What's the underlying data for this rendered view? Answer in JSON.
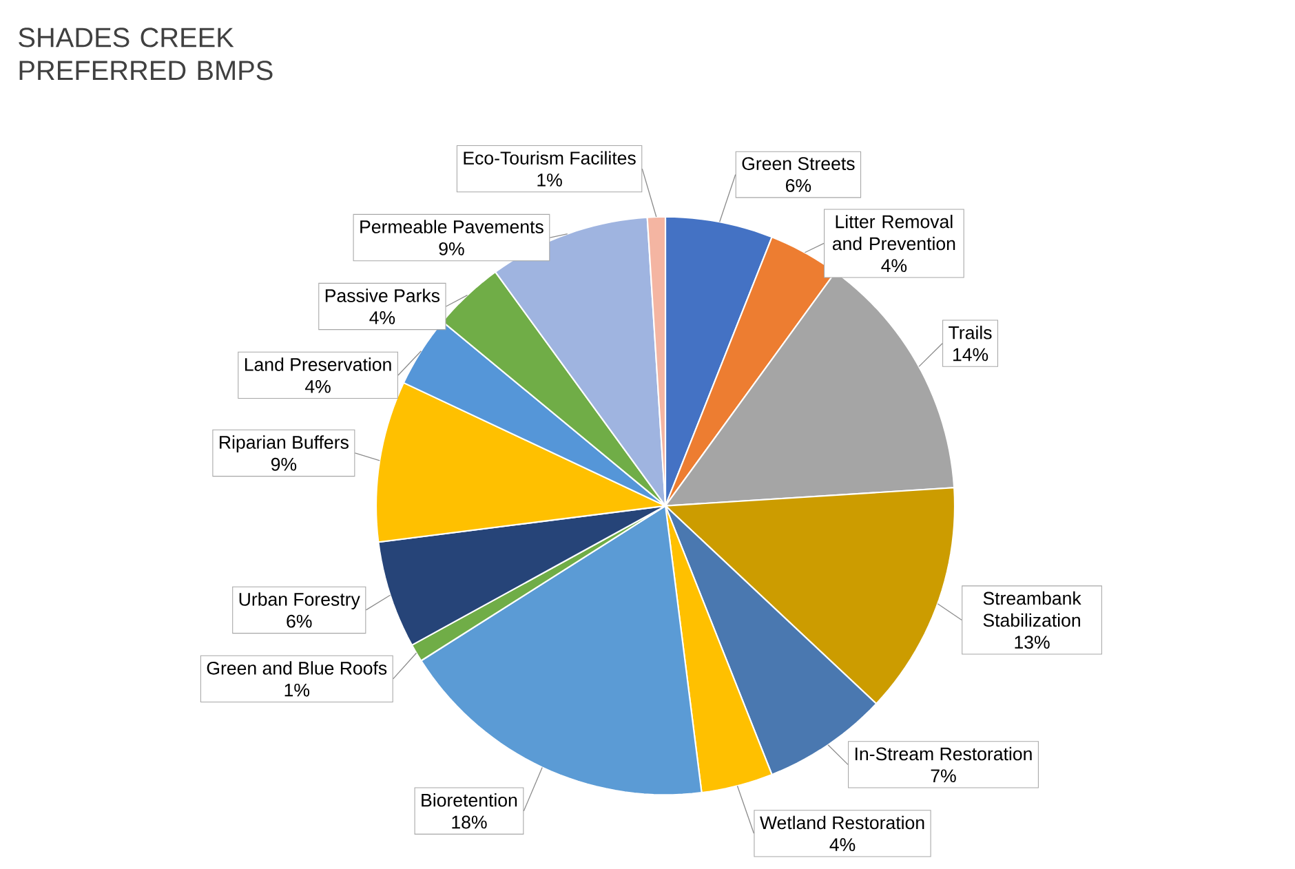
{
  "chart_data": {
    "type": "pie",
    "title": "SHADES CREEK PREFERRED BMPS",
    "categories": [
      "Green Streets",
      "Litter Removal and Prevention",
      "Trails",
      "Streambank Stabilization",
      "In-Stream Restoration",
      "Wetland Restoration",
      "Bioretention",
      "Green and Blue Roofs",
      "Urban Forestry",
      "Riparian Buffers",
      "Land Preservation",
      "Passive Parks",
      "Permeable Pavements",
      "Eco-Tourism Facilites"
    ],
    "values": [
      6,
      4,
      14,
      13,
      7,
      4,
      18,
      1,
      6,
      9,
      4,
      4,
      9,
      1
    ],
    "value_labels": [
      "6%",
      "4%",
      "14%",
      "13%",
      "7%",
      "4%",
      "18%",
      "1%",
      "6%",
      "9%",
      "4%",
      "4%",
      "9%",
      "1%"
    ],
    "colors": [
      "#4472c4",
      "#ed7d31",
      "#a5a5a5",
      "#cc9c00",
      "#4a78b0",
      "#ffc000",
      "#5b9bd5",
      "#70ad47",
      "#264478",
      "#ffc000",
      "#5596d8",
      "#70ad47",
      "#9fb4e0",
      "#f4b5a2"
    ]
  }
}
